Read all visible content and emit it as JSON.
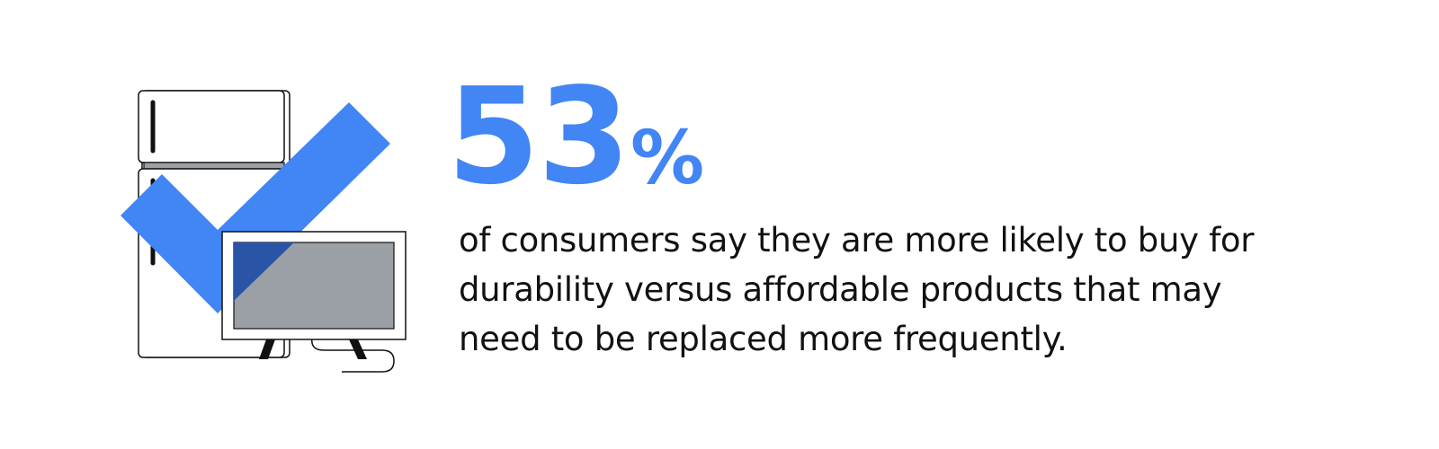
{
  "stat": {
    "number": "53",
    "percent_sign": "%"
  },
  "caption": {
    "lines": [
      "of consumers say they are more likely to buy for",
      "durability versus affordable products that may",
      "need to be replaced more frequently."
    ]
  },
  "icons": {
    "appliances": "refrigerator-and-tv-icon",
    "checkmark": "checkmark-icon"
  },
  "colors": {
    "accent": "#4285f4",
    "text": "#111111",
    "screen": "#9aa0a6",
    "overlap": "#2a55a6"
  }
}
